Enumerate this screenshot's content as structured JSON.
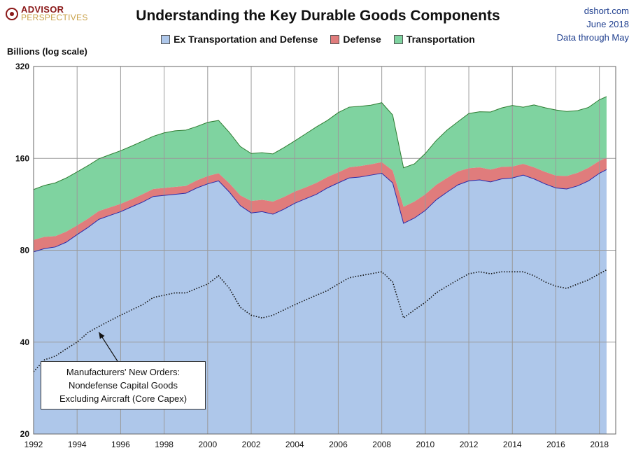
{
  "logo": {
    "line1": "ADVISOR",
    "line2": "PERSPECTIVES"
  },
  "source": {
    "site": "dshort.com",
    "date": "June 2018",
    "through": "Data through May"
  },
  "chart_data": {
    "type": "area",
    "title": "Understanding the Key Durable Goods Components",
    "ylabel": "Billions (log scale)",
    "y_scale": "log",
    "ylim": [
      20,
      320
    ],
    "y_ticks": [
      20,
      40,
      80,
      160,
      320
    ],
    "xlim": [
      1992.0,
      2018.75
    ],
    "x_ticks": [
      1992,
      1994,
      1996,
      1998,
      2000,
      2002,
      2004,
      2006,
      2008,
      2010,
      2012,
      2014,
      2016,
      2018
    ],
    "grid": true,
    "legend_position": "top-center",
    "stacked": true,
    "colors": {
      "ex_transport": "#aec7ea",
      "ex_transport_line": "#2a2aa8",
      "defense": "#e07c7c",
      "transportation": "#7fd3a0",
      "transportation_line": "#2e7d32",
      "core_capex": "#111111",
      "grid": "#9a9a9a"
    },
    "x": [
      1992.0,
      1992.5,
      1993.0,
      1993.5,
      1994.0,
      1994.5,
      1995.0,
      1995.5,
      1996.0,
      1996.5,
      1997.0,
      1997.5,
      1998.0,
      1998.5,
      1999.0,
      1999.5,
      2000.0,
      2000.5,
      2001.0,
      2001.5,
      2002.0,
      2002.5,
      2003.0,
      2003.5,
      2004.0,
      2004.5,
      2005.0,
      2005.5,
      2006.0,
      2006.5,
      2007.0,
      2007.5,
      2008.0,
      2008.5,
      2009.0,
      2009.5,
      2010.0,
      2010.5,
      2011.0,
      2011.5,
      2012.0,
      2012.5,
      2013.0,
      2013.5,
      2014.0,
      2014.5,
      2015.0,
      2015.5,
      2016.0,
      2016.5,
      2017.0,
      2017.5,
      2018.0,
      2018.33
    ],
    "series": [
      {
        "name": "Ex Transportation and Defense",
        "key": "ex_transport",
        "values": [
          79,
          81,
          82,
          85,
          90,
          95,
          101,
          104,
          107,
          111,
          115,
          120,
          121,
          122,
          123,
          128,
          132,
          135,
          124,
          112,
          106,
          107,
          105,
          109,
          114,
          118,
          122,
          128,
          133,
          138,
          139,
          141,
          143,
          133,
          98,
          102,
          108,
          117,
          124,
          131,
          135,
          136,
          134,
          137,
          138,
          141,
          137,
          132,
          128,
          127,
          130,
          135,
          143,
          147
        ]
      },
      {
        "name": "Defense",
        "key": "defense",
        "values": [
          7.5,
          7.5,
          7,
          7,
          6.5,
          6.5,
          6.5,
          6.5,
          6.5,
          6.5,
          7,
          7,
          7,
          7,
          7,
          7.5,
          8,
          8,
          8.5,
          9,
          10,
          10,
          10.5,
          10.5,
          10.5,
          10.5,
          11,
          11,
          11,
          11.5,
          12,
          12,
          12.5,
          13,
          13,
          13.5,
          14,
          14,
          14,
          14,
          13.5,
          13.5,
          13,
          13,
          12.5,
          12.5,
          12.5,
          12.5,
          12.5,
          13,
          13.5,
          14,
          14,
          14
        ]
      },
      {
        "name": "Transportation",
        "key": "transportation",
        "values": [
          40,
          42,
          44,
          46,
          48,
          50,
          52,
          54,
          56,
          58,
          60,
          62,
          66,
          68,
          68,
          68,
          70,
          70,
          62,
          54,
          50,
          50,
          50,
          54,
          58,
          64,
          70,
          74,
          82,
          86,
          86,
          86,
          88,
          76,
          38,
          38,
          44,
          52,
          60,
          66,
          76,
          78,
          80,
          84,
          88,
          82,
          90,
          90,
          90,
          88,
          86,
          86,
          92,
          94
        ]
      }
    ],
    "overlay": {
      "name": "Manufacturers' New Orders: Nondefense Capital Goods Excluding Aircraft (Core Capex)",
      "values": [
        32,
        35,
        36,
        38,
        40,
        43,
        45,
        47,
        49,
        51,
        53,
        56,
        57,
        58,
        58,
        60,
        62,
        66,
        60,
        52,
        49,
        48,
        49,
        51,
        53,
        55,
        57,
        59,
        62,
        65,
        66,
        67,
        68,
        63,
        48,
        51,
        54,
        58,
        61,
        64,
        67,
        68,
        67,
        68,
        68,
        68,
        66,
        63,
        61,
        60,
        62,
        64,
        67,
        69
      ]
    },
    "annotation": {
      "lines": [
        "Manufacturers' New Orders:",
        "Nondefense Capital Goods",
        "Excluding Aircraft (Core Capex)"
      ],
      "points_to_x": 1995.0
    }
  }
}
